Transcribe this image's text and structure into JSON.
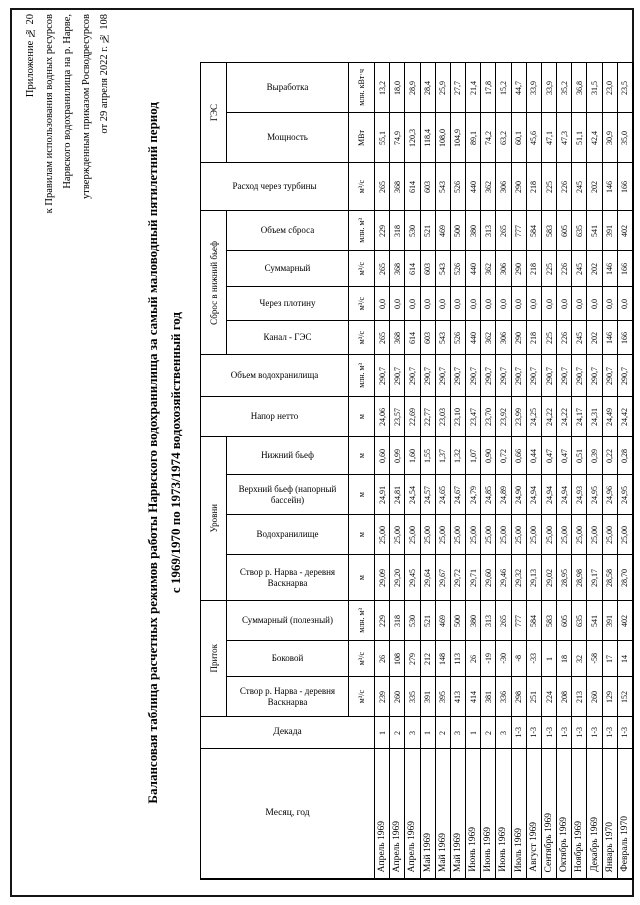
{
  "page": {
    "appendix_lines": [
      "Приложение № 20",
      "к Правилам использования водных ресурсов",
      "Нарвского водохранилища на р. Нарве,",
      "утвержденным приказом Росводресурсов",
      "от 29 апреля 2022 г. № 108"
    ],
    "title_line1": "Балансовая таблица расчетных режимов работы Нарвского водохранилища за самый маловодный пятилетний период",
    "title_line2": "с 1969/1970 по 1973/1974 водохозяйственный год"
  },
  "table": {
    "columns_spec": [
      {
        "name": "Месяц, год",
        "unit": ""
      },
      {
        "name": "Декада",
        "unit": ""
      },
      {
        "name": "Створ р. Нарва - деревня Васкнарва",
        "unit": "м³/с",
        "group": "Приток"
      },
      {
        "name": "Боковой",
        "unit": "м³/с",
        "group": "Приток"
      },
      {
        "name": "Суммарный (полезный)",
        "unit": "млн. м³",
        "group": "Приток"
      },
      {
        "name": "Створ р. Нарва - деревня Васкнарва",
        "unit": "м",
        "group": "Уровни"
      },
      {
        "name": "Водохранилище",
        "unit": "м",
        "group": "Уровни"
      },
      {
        "name": "Верхний бьеф (напорный бассейн)",
        "unit": "м",
        "group": "Уровни"
      },
      {
        "name": "Нижний бьеф",
        "unit": "м",
        "group": "Уровни"
      },
      {
        "name": "Напор нетто",
        "unit": "м"
      },
      {
        "name": "Объем водохранилища",
        "unit": "млн. м³"
      },
      {
        "name": "Канал - ГЭС",
        "unit": "м³/с",
        "group": "Сброс в нижний бьеф"
      },
      {
        "name": "Через плотину",
        "unit": "м³/с",
        "group": "Сброс в нижний бьеф"
      },
      {
        "name": "Суммарный",
        "unit": "м³/с",
        "group": "Сброс в нижний бьеф"
      },
      {
        "name": "Объем сброса",
        "unit": "млн. м³",
        "group": "Сброс в нижний бьеф"
      },
      {
        "name": "Расход через турбины",
        "unit": "м³/с"
      },
      {
        "name": "Мощность",
        "unit": "МВт",
        "group": "ГЭС"
      },
      {
        "name": "Выработка",
        "unit": "млн. кВт·ч",
        "group": "ГЭС"
      }
    ],
    "rows": [
      [
        "Апрель 1969",
        "1",
        "239",
        "26",
        "229",
        "29,09",
        "25,00",
        "24,91",
        "0,60",
        "24,06",
        "290,7",
        "265",
        "0,0",
        "265",
        "229",
        "265",
        "55,1",
        "13,2"
      ],
      [
        "Апрель 1969",
        "2",
        "260",
        "108",
        "318",
        "29,20",
        "25,00",
        "24,81",
        "0,99",
        "23,57",
        "290,7",
        "368",
        "0,0",
        "368",
        "318",
        "368",
        "74,9",
        "18,0"
      ],
      [
        "Апрель 1969",
        "3",
        "335",
        "279",
        "530",
        "29,45",
        "25,00",
        "24,54",
        "1,60",
        "22,69",
        "290,7",
        "614",
        "0,0",
        "614",
        "530",
        "614",
        "120,3",
        "28,9"
      ],
      [
        "Май 1969",
        "1",
        "391",
        "212",
        "521",
        "29,64",
        "25,00",
        "24,57",
        "1,55",
        "22,77",
        "290,7",
        "603",
        "0,0",
        "603",
        "521",
        "603",
        "118,4",
        "28,4"
      ],
      [
        "Май 1969",
        "2",
        "395",
        "148",
        "469",
        "29,67",
        "25,00",
        "24,65",
        "1,37",
        "23,03",
        "290,7",
        "543",
        "0,0",
        "543",
        "469",
        "543",
        "108,0",
        "25,9"
      ],
      [
        "Май 1969",
        "3",
        "413",
        "113",
        "500",
        "29,72",
        "25,00",
        "24,67",
        "1,32",
        "23,10",
        "290,7",
        "526",
        "0,0",
        "526",
        "500",
        "526",
        "104,9",
        "27,7"
      ],
      [
        "Июнь 1969",
        "1",
        "414",
        "26",
        "380",
        "29,71",
        "25,00",
        "24,79",
        "1,07",
        "23,47",
        "290,7",
        "440",
        "0,0",
        "440",
        "380",
        "440",
        "89,1",
        "21,4"
      ],
      [
        "Июнь 1969",
        "2",
        "381",
        "-19",
        "313",
        "29,60",
        "25,00",
        "24,85",
        "0,90",
        "23,70",
        "290,7",
        "362",
        "0,0",
        "362",
        "313",
        "362",
        "74,2",
        "17,8"
      ],
      [
        "Июнь 1969",
        "3",
        "336",
        "-30",
        "265",
        "29,46",
        "25,00",
        "24,89",
        "0,72",
        "23,92",
        "290,7",
        "306",
        "0,0",
        "306",
        "265",
        "306",
        "63,2",
        "15,2"
      ],
      [
        "Июль 1969",
        "1-3",
        "298",
        "-8",
        "777",
        "29,32",
        "25,00",
        "24,90",
        "0,66",
        "23,99",
        "290,7",
        "290",
        "0,0",
        "290",
        "777",
        "290",
        "60,1",
        "44,7"
      ],
      [
        "Август 1969",
        "1-3",
        "251",
        "-33",
        "584",
        "29,13",
        "25,00",
        "24,94",
        "0,44",
        "24,25",
        "290,7",
        "218",
        "0,0",
        "218",
        "584",
        "218",
        "45,6",
        "33,9"
      ],
      [
        "Сентябрь 1969",
        "1-3",
        "224",
        "1",
        "583",
        "29,02",
        "25,00",
        "24,94",
        "0,47",
        "24,22",
        "290,7",
        "225",
        "0,0",
        "225",
        "583",
        "225",
        "47,1",
        "33,9"
      ],
      [
        "Октябрь 1969",
        "1-3",
        "208",
        "18",
        "605",
        "28,95",
        "25,00",
        "24,94",
        "0,47",
        "24,22",
        "290,7",
        "226",
        "0,0",
        "226",
        "605",
        "226",
        "47,3",
        "35,2"
      ],
      [
        "Ноябрь 1969",
        "1-3",
        "213",
        "32",
        "635",
        "28,98",
        "25,00",
        "24,93",
        "0,51",
        "24,17",
        "290,7",
        "245",
        "0,0",
        "245",
        "635",
        "245",
        "51,1",
        "36,8"
      ],
      [
        "Декабрь 1969",
        "1-3",
        "260",
        "-58",
        "541",
        "29,17",
        "25,00",
        "24,95",
        "0,39",
        "24,31",
        "290,7",
        "202",
        "0,0",
        "202",
        "541",
        "202",
        "42,4",
        "31,5"
      ],
      [
        "Январь 1970",
        "1-3",
        "129",
        "17",
        "391",
        "28,58",
        "25,00",
        "24,96",
        "0,22",
        "24,49",
        "290,7",
        "146",
        "0,0",
        "146",
        "391",
        "146",
        "30,9",
        "23,0"
      ],
      [
        "Февраль 1970",
        "1-3",
        "152",
        "14",
        "402",
        "28,70",
        "25,00",
        "24,95",
        "0,28",
        "24,42",
        "290,7",
        "166",
        "0,0",
        "166",
        "402",
        "166",
        "35,0",
        "23,5"
      ]
    ]
  }
}
